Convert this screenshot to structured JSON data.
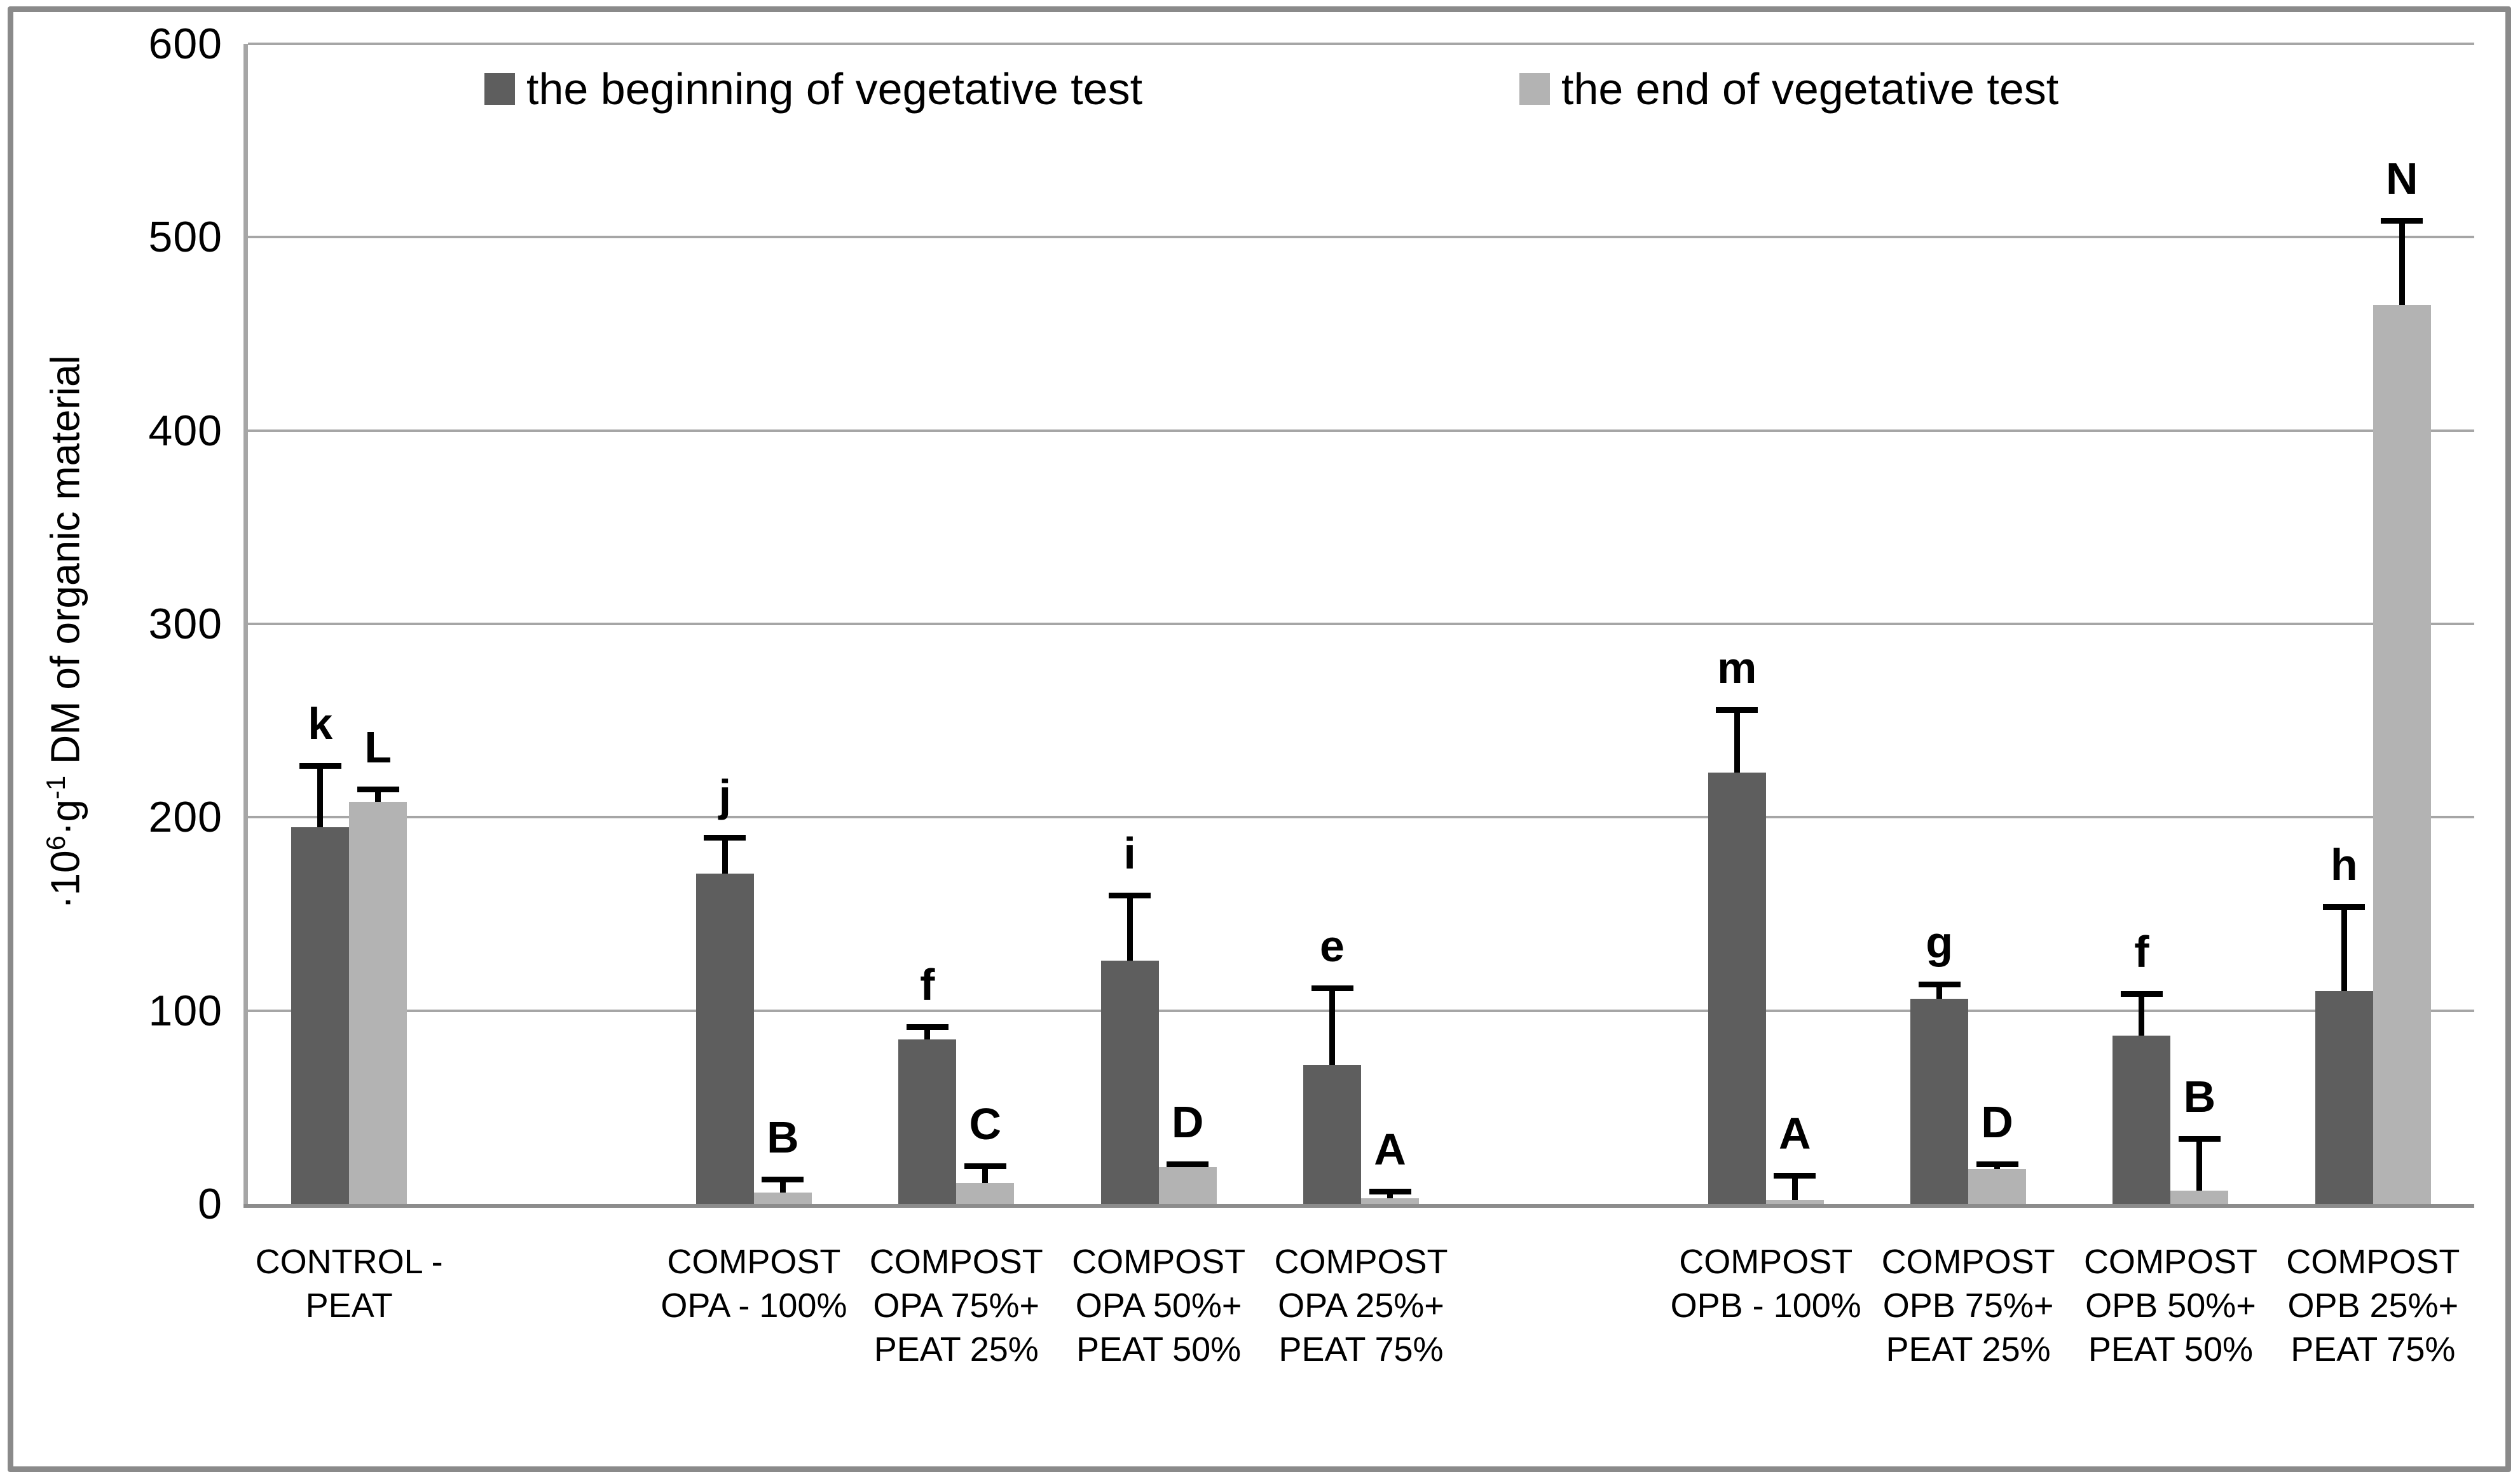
{
  "figure": {
    "background": "#ffffff",
    "frame_color": "#8a8a8a"
  },
  "colors": {
    "series_beginning": "#5e5e5e",
    "series_end": "#b3b3b3",
    "gridline": "#a6a6a6",
    "axis": "#8c8c8c",
    "error_bar": "#000000",
    "text": "#000000"
  },
  "y_axis": {
    "title_parts": [
      {
        "t": "·10"
      },
      {
        "t": "6",
        "sup": true
      },
      {
        "t": "·g"
      },
      {
        "t": "-1",
        "sup": true
      },
      {
        "t": " DM of organic material"
      }
    ],
    "ticks": [
      0,
      100,
      200,
      300,
      400,
      500,
      600
    ]
  },
  "chart_data": {
    "type": "bar",
    "title": "",
    "xlabel": "",
    "ylabel": "·10⁶·g⁻¹ DM of organic material",
    "ylim": [
      0,
      600
    ],
    "grid": true,
    "legend_position": "top-center",
    "legend": [
      "the beginning of vegetative test",
      "the end of vegetative test"
    ],
    "categories": [
      {
        "label": "CONTROL - PEAT",
        "lines": [
          "CONTROL -",
          "PEAT"
        ],
        "slot": 0
      },
      {
        "label": "COMPOST OPA - 100%",
        "lines": [
          "COMPOST",
          "OPA - 100%"
        ],
        "slot": 2
      },
      {
        "label": "COMPOST OPA 75%+ PEAT 25%",
        "lines": [
          "COMPOST",
          "OPA 75%+",
          "PEAT 25%"
        ],
        "slot": 3
      },
      {
        "label": "COMPOST OPA 50%+ PEAT 50%",
        "lines": [
          "COMPOST",
          "OPA 50%+",
          "PEAT 50%"
        ],
        "slot": 4
      },
      {
        "label": "COMPOST OPA 25%+ PEAT 75%",
        "lines": [
          "COMPOST",
          "OPA 25%+",
          "PEAT 75%"
        ],
        "slot": 5
      },
      {
        "label": "COMPOST OPB - 100%",
        "lines": [
          "COMPOST",
          "OPB - 100%"
        ],
        "slot": 7
      },
      {
        "label": "COMPOST OPB 75%+ PEAT 25%",
        "lines": [
          "COMPOST",
          "OPB 75%+",
          "PEAT 25%"
        ],
        "slot": 8
      },
      {
        "label": "COMPOST OPB 50%+ PEAT 50%",
        "lines": [
          "COMPOST",
          "OPB 50%+",
          "PEAT 50%"
        ],
        "slot": 9
      },
      {
        "label": "COMPOST OPB 25%+ PEAT 75%",
        "lines": [
          "COMPOST",
          "OPB 25%+",
          "PEAT 75%"
        ],
        "slot": 10
      }
    ],
    "total_slots": 11,
    "series": [
      {
        "name": "the beginning of vegetative test",
        "color": "#5e5e5e",
        "values": [
          195,
          171,
          85,
          126,
          72,
          223,
          106,
          87,
          110
        ],
        "error_plus": [
          33,
          20,
          8,
          35,
          41,
          34,
          9,
          23,
          45
        ],
        "point_labels": [
          "k",
          "j",
          "f",
          "i",
          "e",
          "m",
          "g",
          "f",
          "h"
        ]
      },
      {
        "name": "the end of vegetative test",
        "color": "#b3b3b3",
        "values": [
          208,
          6,
          11,
          19,
          3,
          2,
          18,
          7,
          465
        ],
        "error_plus": [
          8,
          8,
          10,
          3,
          5,
          14,
          4,
          28,
          45
        ],
        "point_labels": [
          "L",
          "B",
          "C",
          "D",
          "A",
          "A",
          "D",
          "B",
          "N"
        ]
      }
    ]
  }
}
